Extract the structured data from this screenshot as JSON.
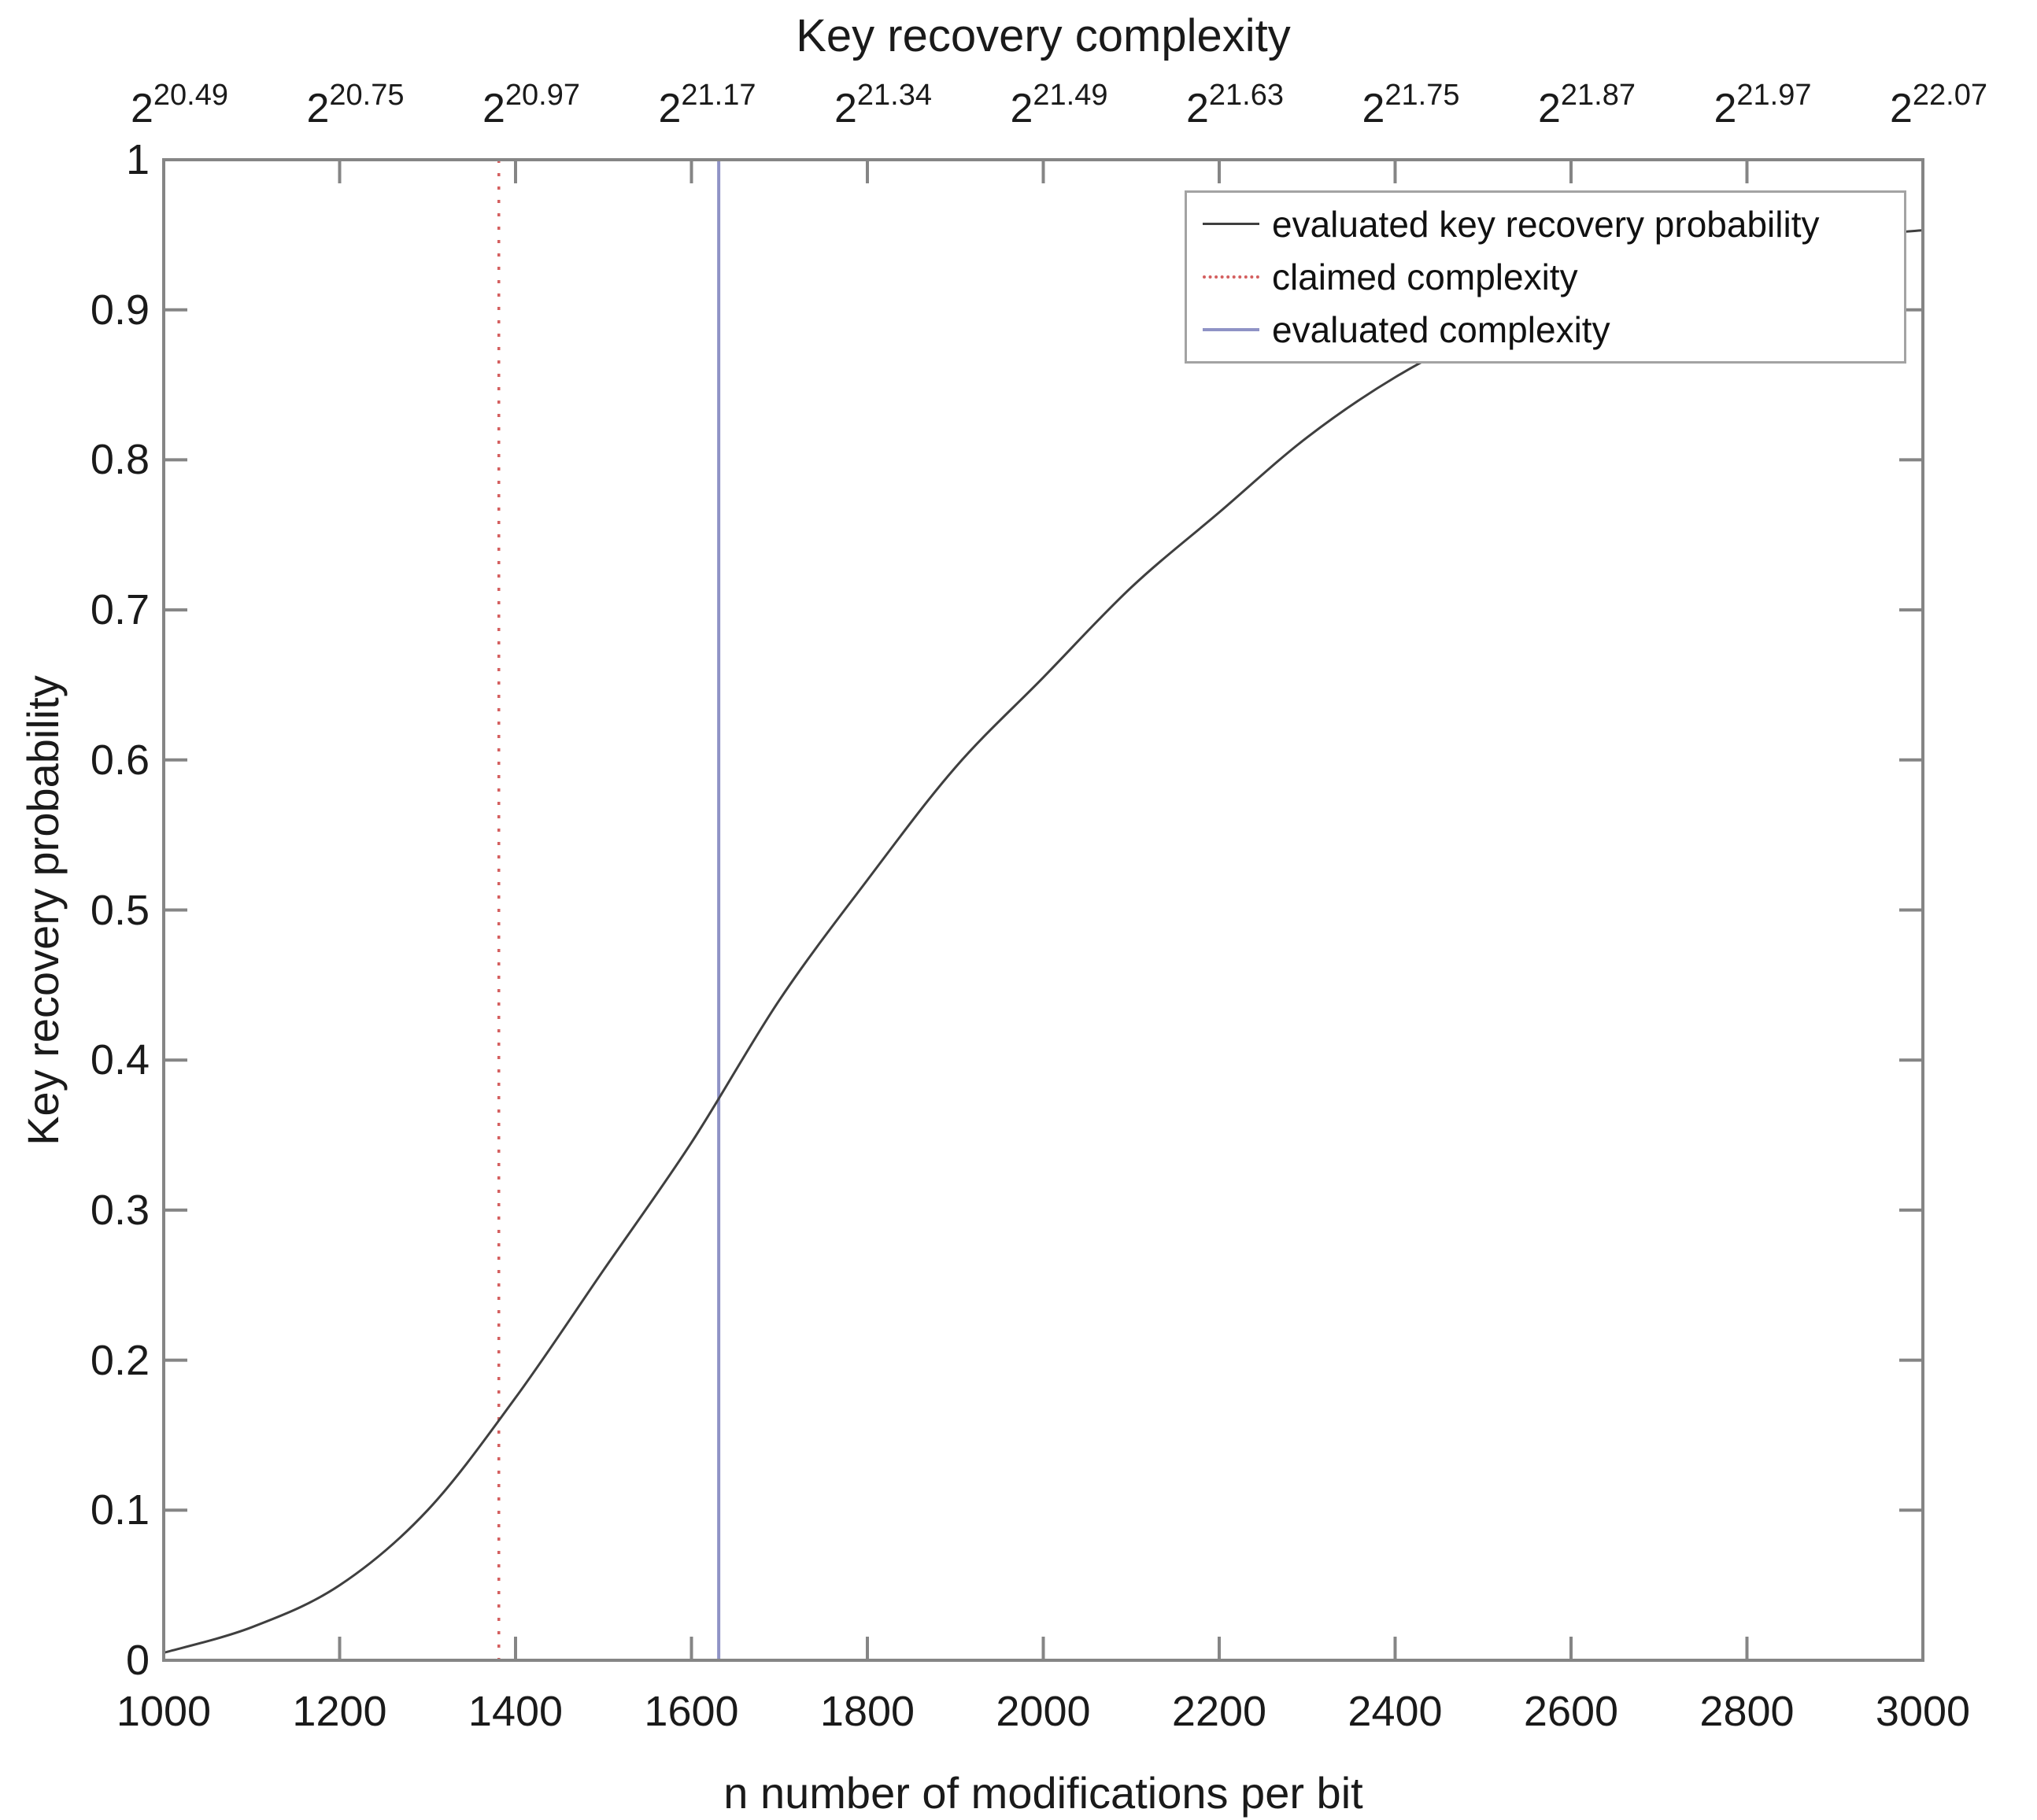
{
  "chart_data": {
    "type": "line",
    "top_axis": {
      "title": "Key recovery complexity",
      "base": "2",
      "exponents": [
        "20.49",
        "20.75",
        "20.97",
        "21.17",
        "21.34",
        "21.49",
        "21.63",
        "21.75",
        "21.87",
        "21.97",
        "22.07"
      ]
    },
    "xlabel": "n number of modifications per bit",
    "ylabel": "Key recovery probability",
    "xlim": [
      1000,
      3000
    ],
    "ylim": [
      0,
      1
    ],
    "x_ticks": [
      1000,
      1200,
      1400,
      1600,
      1800,
      2000,
      2200,
      2400,
      2600,
      2800,
      3000
    ],
    "x_tick_labels": [
      "1000",
      "1200",
      "1400",
      "1600",
      "1800",
      "2000",
      "2200",
      "2400",
      "2600",
      "2800",
      "3000"
    ],
    "y_ticks": [
      0,
      0.1,
      0.2,
      0.3,
      0.4,
      0.5,
      0.6,
      0.7,
      0.8,
      0.9,
      1
    ],
    "y_tick_labels": [
      "0",
      "0.1",
      "0.2",
      "0.3",
      "0.4",
      "0.5",
      "0.6",
      "0.7",
      "0.8",
      "0.9",
      "1"
    ],
    "grid": false,
    "series": [
      {
        "name": "evaluated key recovery probability",
        "color": "#3f3f3f",
        "style": "solid",
        "x": [
          1000,
          1100,
          1200,
          1300,
          1400,
          1500,
          1600,
          1700,
          1800,
          1900,
          2000,
          2100,
          2200,
          2300,
          2400,
          2500,
          2600,
          2700,
          2800,
          2900,
          3000
        ],
        "y": [
          0.005,
          0.022,
          0.05,
          0.1,
          0.175,
          0.26,
          0.345,
          0.44,
          0.52,
          0.595,
          0.655,
          0.715,
          0.765,
          0.815,
          0.855,
          0.885,
          0.905,
          0.925,
          0.94,
          0.948,
          0.953
        ]
      }
    ],
    "vlines": [
      {
        "name": "claimed complexity",
        "x": 1381,
        "color": "#d45f5f",
        "style": "dotted"
      },
      {
        "name": "evaluated complexity",
        "x": 1631,
        "color": "#8f93c6",
        "style": "solid"
      }
    ],
    "legend": {
      "position": "top-right",
      "entries": [
        {
          "label": "evaluated key recovery probability",
          "swatch": "solid-dark-line"
        },
        {
          "label": "claimed complexity",
          "swatch": "dotted-red-line"
        },
        {
          "label": "evaluated complexity",
          "swatch": "solid-blue-line"
        }
      ]
    },
    "axis_color": "#858585",
    "text_color": "#1a1a1a"
  }
}
